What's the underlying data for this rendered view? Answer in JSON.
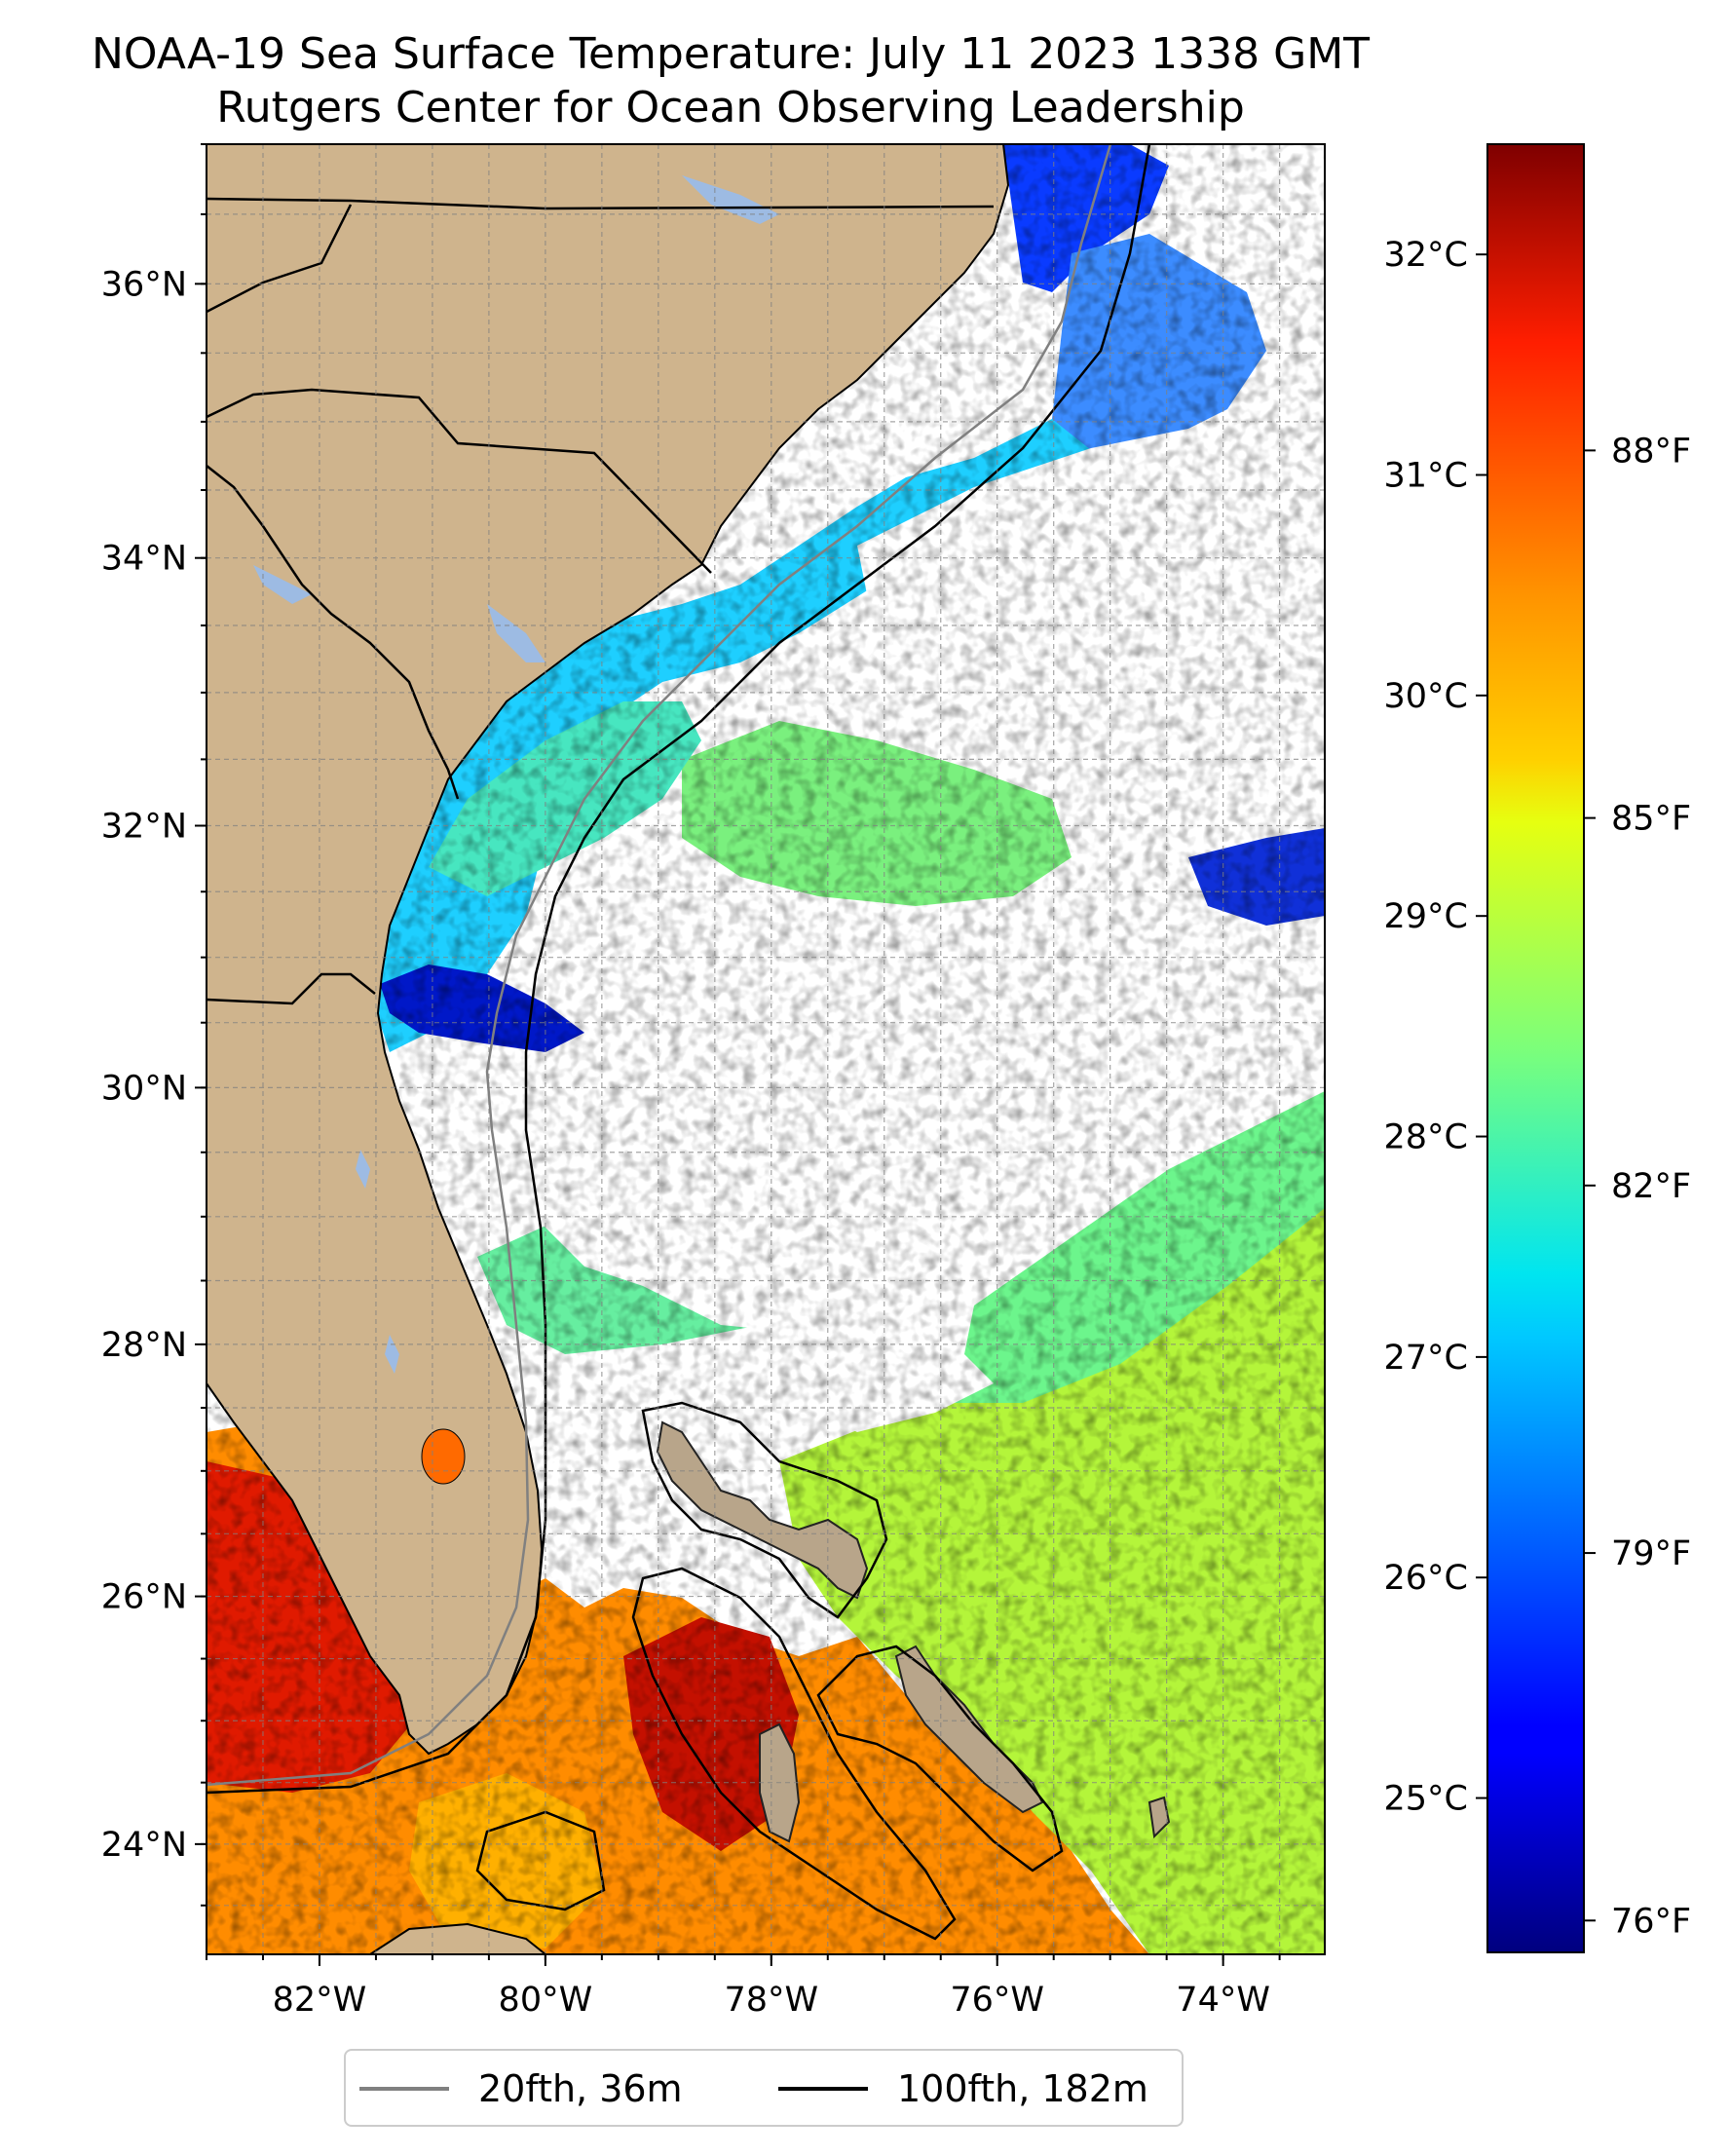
{
  "title": {
    "line1": "NOAA-19 Sea Surface Temperature: July 11 2023 1338 GMT",
    "line2": "Rutgers Center for Ocean Observing Leadership"
  },
  "map": {
    "lon_range": [
      -83.0,
      -73.1
    ],
    "lat_range": [
      23.1,
      37.0
    ],
    "projection": "Mercator",
    "grid": true,
    "lon_ticks": [
      {
        "value": -82,
        "label": "82°W"
      },
      {
        "value": -80,
        "label": "80°W"
      },
      {
        "value": -78,
        "label": "78°W"
      },
      {
        "value": -76,
        "label": "76°W"
      },
      {
        "value": -74,
        "label": "74°W"
      }
    ],
    "lat_ticks": [
      {
        "value": 24,
        "label": "24°N"
      },
      {
        "value": 26,
        "label": "26°N"
      },
      {
        "value": 28,
        "label": "28°N"
      },
      {
        "value": 30,
        "label": "30°N"
      },
      {
        "value": 32,
        "label": "32°N"
      },
      {
        "value": 34,
        "label": "34°N"
      },
      {
        "value": 36,
        "label": "36°N"
      }
    ],
    "land_color": "#cfb48d",
    "lake_color": "#9dbbe3",
    "cloud_color": "#ffffff"
  },
  "colorbar": {
    "colormap": "jet",
    "range_celsius": [
      24.3,
      32.5
    ],
    "celsius_ticks": [
      {
        "value": 25,
        "label": "25°C"
      },
      {
        "value": 26,
        "label": "26°C"
      },
      {
        "value": 27,
        "label": "27°C"
      },
      {
        "value": 28,
        "label": "28°C"
      },
      {
        "value": 29,
        "label": "29°C"
      },
      {
        "value": 30,
        "label": "30°C"
      },
      {
        "value": 31,
        "label": "31°C"
      },
      {
        "value": 32,
        "label": "32°C"
      }
    ],
    "fahrenheit_ticks": [
      {
        "value": 76,
        "label": "76°F"
      },
      {
        "value": 79,
        "label": "79°F"
      },
      {
        "value": 82,
        "label": "82°F"
      },
      {
        "value": 85,
        "label": "85°F"
      },
      {
        "value": 88,
        "label": "88°F"
      }
    ]
  },
  "legend": {
    "items": [
      {
        "label": "20fth, 36m",
        "color": "#808080"
      },
      {
        "label": "100fth, 182m",
        "color": "#000000"
      }
    ]
  }
}
